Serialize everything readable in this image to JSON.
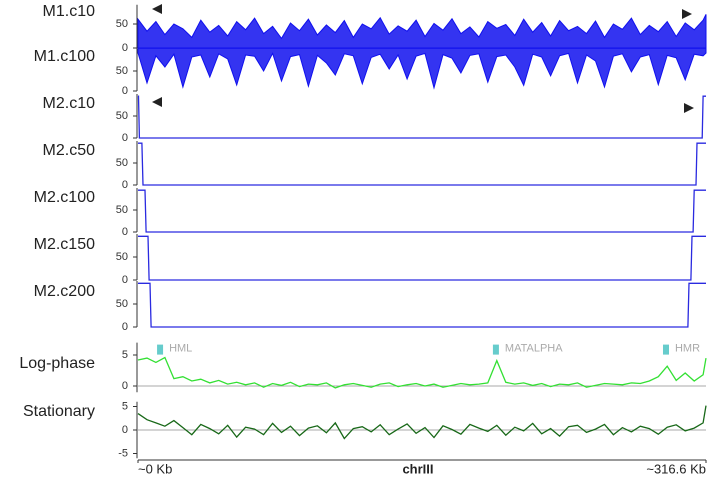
{
  "chart_data": [
    {
      "type": "area",
      "title": "M1.c10",
      "color": "#1010ee",
      "baseline": "bottom",
      "xlim": [
        0,
        316.6
      ],
      "ylim": [
        0,
        90
      ],
      "yticks": [
        0,
        50
      ],
      "x": [
        0,
        5,
        10,
        15,
        20,
        25,
        30,
        35,
        40,
        45,
        50,
        55,
        60,
        65,
        70,
        75,
        80,
        85,
        90,
        95,
        100,
        105,
        110,
        115,
        120,
        125,
        130,
        135,
        140,
        145,
        150,
        155,
        160,
        165,
        170,
        175,
        180,
        185,
        190,
        195,
        200,
        205,
        210,
        215,
        220,
        225,
        230,
        235,
        240,
        245,
        250,
        255,
        260,
        265,
        270,
        275,
        280,
        285,
        290,
        295,
        300,
        305,
        310,
        315,
        316.6
      ],
      "values": [
        60,
        35,
        55,
        28,
        50,
        40,
        22,
        58,
        33,
        47,
        25,
        55,
        38,
        62,
        30,
        45,
        20,
        52,
        36,
        60,
        27,
        48,
        32,
        57,
        22,
        50,
        40,
        63,
        29,
        46,
        35,
        58,
        24,
        51,
        37,
        61,
        30,
        44,
        23,
        55,
        41,
        49,
        26,
        60,
        33,
        53,
        25,
        57,
        36,
        45,
        30,
        56,
        22,
        50,
        39,
        62,
        28,
        47,
        34,
        55,
        24,
        52,
        38,
        58,
        70
      ]
    },
    {
      "type": "area",
      "title": "M1.c100",
      "color": "#1010ee",
      "baseline": "top",
      "xlim": [
        0,
        316.6
      ],
      "ylim": [
        0,
        107
      ],
      "yticks": [
        0,
        50
      ],
      "x": [
        0,
        5,
        10,
        15,
        20,
        25,
        30,
        35,
        40,
        45,
        50,
        55,
        60,
        65,
        70,
        75,
        80,
        85,
        90,
        95,
        100,
        105,
        110,
        115,
        120,
        125,
        130,
        135,
        140,
        145,
        150,
        155,
        160,
        165,
        170,
        175,
        180,
        185,
        190,
        195,
        200,
        205,
        210,
        215,
        220,
        225,
        230,
        235,
        240,
        245,
        250,
        255,
        260,
        265,
        270,
        275,
        280,
        285,
        290,
        295,
        300,
        305,
        310,
        315,
        316.6
      ],
      "values": [
        95,
        20,
        88,
        60,
        92,
        10,
        85,
        90,
        35,
        93,
        80,
        15,
        90,
        87,
        50,
        94,
        25,
        86,
        91,
        12,
        89,
        70,
        40,
        93,
        88,
        18,
        84,
        92,
        55,
        90,
        30,
        87,
        94,
        8,
        91,
        82,
        45,
        89,
        93,
        22,
        86,
        90,
        60,
        14,
        92,
        85,
        38,
        88,
        94,
        20,
        90,
        75,
        10,
        87,
        93,
        48,
        85,
        91,
        16,
        89,
        83,
        28,
        92,
        88,
        95
      ]
    },
    {
      "type": "line",
      "title": "M2.c10",
      "color": "#2a2ae0",
      "xlim": [
        0,
        316.6
      ],
      "ylim": [
        0,
        100
      ],
      "yticks": [
        0,
        50
      ],
      "x": [
        0,
        0.3,
        0.8,
        314.5,
        315,
        316.6
      ],
      "values": [
        95,
        95,
        0,
        0,
        95,
        95
      ]
    },
    {
      "type": "line",
      "title": "M2.c50",
      "color": "#2a2ae0",
      "xlim": [
        0,
        316.6
      ],
      "ylim": [
        0,
        100
      ],
      "yticks": [
        0,
        50
      ],
      "x": [
        0,
        2.2,
        2.8,
        311,
        311.6,
        316.6
      ],
      "values": [
        95,
        95,
        0,
        0,
        95,
        95
      ]
    },
    {
      "type": "line",
      "title": "M2.c100",
      "color": "#2a2ae0",
      "xlim": [
        0,
        316.6
      ],
      "ylim": [
        0,
        100
      ],
      "yticks": [
        0,
        50
      ],
      "x": [
        0,
        3.9,
        4.5,
        309.4,
        310,
        316.6
      ],
      "values": [
        95,
        95,
        0,
        0,
        95,
        95
      ]
    },
    {
      "type": "line",
      "title": "M2.c150",
      "color": "#2a2ae0",
      "xlim": [
        0,
        316.6
      ],
      "ylim": [
        0,
        100
      ],
      "yticks": [
        0,
        50
      ],
      "x": [
        0,
        5.6,
        6.2,
        308.2,
        308.8,
        316.6
      ],
      "values": [
        95,
        95,
        0,
        0,
        95,
        95
      ]
    },
    {
      "type": "line",
      "title": "M2.c200",
      "color": "#2a2ae0",
      "xlim": [
        0,
        316.6
      ],
      "ylim": [
        0,
        100
      ],
      "yticks": [
        0,
        50
      ],
      "x": [
        0,
        6.7,
        7.3,
        306.5,
        307.1,
        316.6
      ],
      "values": [
        95,
        95,
        0,
        0,
        95,
        95
      ]
    },
    {
      "type": "line",
      "title": "Log-phase",
      "color": "#33e033",
      "zero_line": true,
      "xlim": [
        0,
        316.6
      ],
      "ylim": [
        -1,
        7
      ],
      "yticks": [
        0,
        5
      ],
      "annotations": [
        {
          "text": "HML",
          "x": 12.3
        },
        {
          "text": "MATALPHA",
          "x": 199.5
        },
        {
          "text": "HMR",
          "x": 294.3
        }
      ],
      "x": [
        0,
        5,
        10,
        15,
        20,
        25,
        30,
        35,
        40,
        45,
        50,
        55,
        60,
        65,
        70,
        75,
        80,
        85,
        90,
        95,
        100,
        105,
        110,
        115,
        120,
        125,
        130,
        135,
        140,
        145,
        150,
        155,
        160,
        165,
        170,
        175,
        180,
        185,
        190,
        195,
        200,
        205,
        210,
        215,
        220,
        225,
        230,
        235,
        240,
        245,
        250,
        255,
        260,
        265,
        270,
        275,
        280,
        285,
        290,
        295,
        300,
        305,
        310,
        315,
        316.6
      ],
      "values": [
        4.2,
        4.5,
        3.8,
        4.6,
        1.2,
        1.5,
        0.8,
        1.1,
        0.5,
        0.9,
        0.3,
        0.6,
        0.2,
        0.5,
        -0.2,
        0.4,
        0.1,
        0.6,
        -0.1,
        0.3,
        0.2,
        0.5,
        -0.3,
        0.2,
        0.4,
        0.1,
        -0.2,
        0.3,
        0.5,
        -0.1,
        0.2,
        0.4,
        0,
        0.3,
        -0.2,
        0.1,
        0.4,
        0.2,
        0.3,
        0.5,
        4.1,
        0.6,
        0.3,
        0.5,
        0.1,
        0.4,
        -0.1,
        0.3,
        0.2,
        0.5,
        -0.2,
        0.1,
        0.4,
        0.3,
        0.2,
        0.5,
        0.4,
        0.8,
        1.5,
        3.2,
        0.9,
        2.1,
        0.8,
        1.8,
        4.5
      ]
    },
    {
      "type": "line",
      "title": "Stationary",
      "color": "#186818",
      "zero_line": true,
      "xlim": [
        0,
        316.6
      ],
      "ylim": [
        -6,
        6
      ],
      "yticks": [
        -5,
        0,
        5
      ],
      "xlabel": "chrIII",
      "xticks": [
        {
          "value": 0,
          "label": "~0 Kb"
        },
        {
          "value": 316.6,
          "label": "~316.6 Kb"
        }
      ],
      "x": [
        0,
        5,
        10,
        15,
        20,
        25,
        30,
        35,
        40,
        45,
        50,
        55,
        60,
        65,
        70,
        75,
        80,
        85,
        90,
        95,
        100,
        105,
        110,
        115,
        120,
        125,
        130,
        135,
        140,
        145,
        150,
        155,
        160,
        165,
        170,
        175,
        180,
        185,
        190,
        195,
        200,
        205,
        210,
        215,
        220,
        225,
        230,
        235,
        240,
        245,
        250,
        255,
        260,
        265,
        270,
        275,
        280,
        285,
        290,
        295,
        300,
        305,
        310,
        315,
        316.6
      ],
      "values": [
        3.5,
        2.2,
        1.5,
        0.8,
        2,
        0.5,
        -1,
        1.2,
        0.3,
        -0.8,
        1,
        -1.5,
        0.6,
        0.2,
        -1,
        1.4,
        -0.5,
        0.8,
        -1.2,
        0.4,
        0.9,
        -0.6,
        1.5,
        -1.8,
        0.3,
        0.7,
        -0.4,
        1.1,
        -1,
        0.2,
        1.3,
        -0.7,
        0.5,
        -1.6,
        0.9,
        0.1,
        -0.9,
        1.2,
        0.4,
        -0.3,
        1,
        -1.1,
        0.6,
        -0.2,
        1.4,
        -0.8,
        0.3,
        -1.3,
        0.7,
        1,
        -0.5,
        0.2,
        1.2,
        -1,
        0.5,
        -0.4,
        0.8,
        0.3,
        -0.9,
        0.6,
        1.1,
        -0.2,
        0.4,
        1.5,
        5.2
      ]
    }
  ]
}
